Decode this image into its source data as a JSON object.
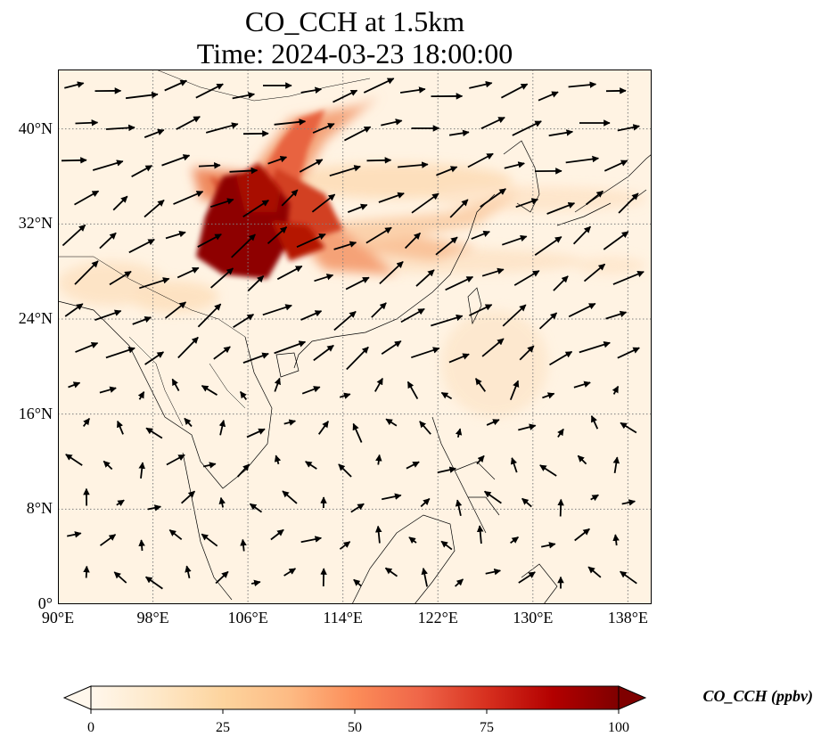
{
  "figure": {
    "title_line1": "CO_CCH at 1.5km",
    "title_line2": "Time: 2024-03-23 18:00:00"
  },
  "map": {
    "lon_range": [
      90,
      140
    ],
    "lat_range": [
      0,
      45
    ],
    "lon_ticks": [
      {
        "value": 90,
        "label": "90°E"
      },
      {
        "value": 98,
        "label": "98°E"
      },
      {
        "value": 106,
        "label": "106°E"
      },
      {
        "value": 114,
        "label": "114°E"
      },
      {
        "value": 122,
        "label": "122°E"
      },
      {
        "value": 130,
        "label": "130°E"
      },
      {
        "value": 138,
        "label": "138°E"
      }
    ],
    "lat_ticks": [
      {
        "value": 0,
        "label": "0°"
      },
      {
        "value": 8,
        "label": "8°N"
      },
      {
        "value": 16,
        "label": "16°N"
      },
      {
        "value": 24,
        "label": "24°N"
      },
      {
        "value": 32,
        "label": "32°N"
      },
      {
        "value": 40,
        "label": "40°N"
      }
    ],
    "gridlines": true,
    "gridline_style": "dotted",
    "plume": {
      "core": {
        "lon": 105.5,
        "lat": 31.5,
        "value": 100
      },
      "branches": [
        {
          "to_lon": 111,
          "to_lat": 42,
          "value": 60
        },
        {
          "to_lon": 116,
          "to_lat": 30,
          "value": 45
        },
        {
          "to_lon": 123,
          "to_lat": 35,
          "value": 25
        },
        {
          "to_lon": 99,
          "to_lat": 37,
          "value": 55
        }
      ]
    }
  },
  "colorbar": {
    "variable_label": "CO_CCH (ppbv)",
    "min": 0,
    "max": 100,
    "ticks": [
      {
        "value": 0,
        "label": "0"
      },
      {
        "value": 25,
        "label": "25"
      },
      {
        "value": 50,
        "label": "50"
      },
      {
        "value": 75,
        "label": "75"
      },
      {
        "value": 100,
        "label": "100"
      }
    ],
    "colormap": "OrRd",
    "color_stops": [
      "#fff7ec",
      "#fee8c8",
      "#fdd49e",
      "#fdbb84",
      "#fc8d59",
      "#ef6548",
      "#d7301f",
      "#b30000",
      "#7f0000"
    ],
    "extend": "both"
  },
  "colors": {
    "background_tint": "#fff3e3",
    "coastline": "#000000",
    "gridline": "#7f7f7f",
    "wind_vector": "#000000"
  }
}
